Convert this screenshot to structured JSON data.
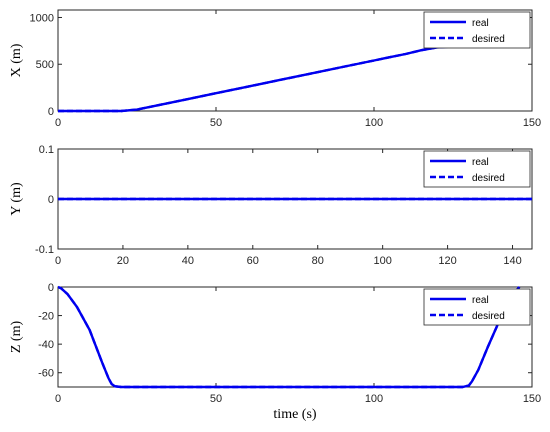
{
  "chart_data": [
    {
      "type": "line",
      "ylabel": "X (m)",
      "xlabel": "",
      "xlim": [
        0,
        150
      ],
      "ylim": [
        0,
        1080
      ],
      "xticks": [
        0,
        50,
        100,
        150
      ],
      "yticks": [
        0,
        500,
        1000
      ],
      "x_tick_labels": [
        "0",
        "50",
        "100",
        "150"
      ],
      "y_tick_labels": [
        "0",
        "500",
        "1000"
      ],
      "legend": {
        "position": "top-right",
        "entries": [
          "real",
          "desired"
        ]
      },
      "series": [
        {
          "name": "real",
          "style": "solid",
          "x": [
            0,
            20,
            25,
            30,
            35,
            40,
            50,
            60,
            70,
            80,
            90,
            100,
            105,
            110,
            115,
            120,
            125,
            130,
            140,
            146
          ],
          "y": [
            0,
            0,
            15,
            50,
            85,
            120,
            190,
            260,
            330,
            400,
            470,
            540,
            575,
            610,
            650,
            680,
            690,
            690,
            690,
            690
          ]
        },
        {
          "name": "desired",
          "style": "dashed",
          "x": [
            0,
            20,
            25,
            30,
            35,
            40,
            50,
            60,
            70,
            80,
            90,
            100,
            105,
            110,
            115,
            120,
            125,
            130,
            140,
            146
          ],
          "y": [
            0,
            0,
            15,
            50,
            85,
            120,
            190,
            260,
            330,
            400,
            470,
            540,
            575,
            610,
            650,
            680,
            690,
            690,
            690,
            690
          ]
        }
      ]
    },
    {
      "type": "line",
      "ylabel": "Y (m)",
      "xlabel": "",
      "xlim": [
        0,
        146
      ],
      "ylim": [
        -0.1,
        0.1
      ],
      "xticks": [
        0,
        20,
        40,
        60,
        80,
        100,
        120,
        140
      ],
      "yticks": [
        -0.1,
        0,
        0.1
      ],
      "x_tick_labels": [
        "0",
        "20",
        "40",
        "60",
        "80",
        "100",
        "120",
        "140"
      ],
      "y_tick_labels": [
        "-0.1",
        "0",
        "0.1"
      ],
      "legend": {
        "position": "top-right",
        "entries": [
          "real",
          "desired"
        ]
      },
      "series": [
        {
          "name": "real",
          "style": "solid",
          "x": [
            0,
            146
          ],
          "y": [
            0,
            0
          ]
        },
        {
          "name": "desired",
          "style": "dashed",
          "x": [
            0,
            146
          ],
          "y": [
            0,
            0
          ]
        }
      ]
    },
    {
      "type": "line",
      "ylabel": "Z (m)",
      "xlabel": "time (s)",
      "xlim": [
        0,
        150
      ],
      "ylim": [
        -70,
        0
      ],
      "xticks": [
        0,
        50,
        100,
        150
      ],
      "yticks": [
        -60,
        -40,
        -20,
        0
      ],
      "x_tick_labels": [
        "0",
        "50",
        "100",
        "150"
      ],
      "y_tick_labels": [
        "-60",
        "-40",
        "-20",
        "0"
      ],
      "legend": {
        "position": "top-right",
        "entries": [
          "real",
          "desired"
        ]
      },
      "series": [
        {
          "name": "real",
          "style": "solid",
          "x": [
            0,
            1,
            3,
            6,
            10,
            14,
            16,
            17,
            18,
            20,
            30,
            60,
            90,
            120,
            128,
            130,
            131,
            133,
            136,
            140,
            144,
            146
          ],
          "y": [
            0,
            -1,
            -5,
            -14,
            -30,
            -53,
            -64,
            -68,
            -69.5,
            -70,
            -70,
            -70,
            -70,
            -70,
            -70,
            -69,
            -66,
            -58,
            -42,
            -22,
            -5,
            0
          ]
        },
        {
          "name": "desired",
          "style": "dashed",
          "x": [
            0,
            1,
            3,
            6,
            10,
            14,
            16,
            17,
            18,
            20,
            30,
            60,
            90,
            120,
            128,
            130,
            131,
            133,
            136,
            140,
            144,
            146
          ],
          "y": [
            0,
            -1,
            -5,
            -14,
            -30,
            -53,
            -64,
            -68,
            -69.5,
            -70,
            -70,
            -70,
            -70,
            -70,
            -70,
            -69,
            -66,
            -58,
            -42,
            -22,
            -5,
            0
          ]
        }
      ]
    }
  ]
}
